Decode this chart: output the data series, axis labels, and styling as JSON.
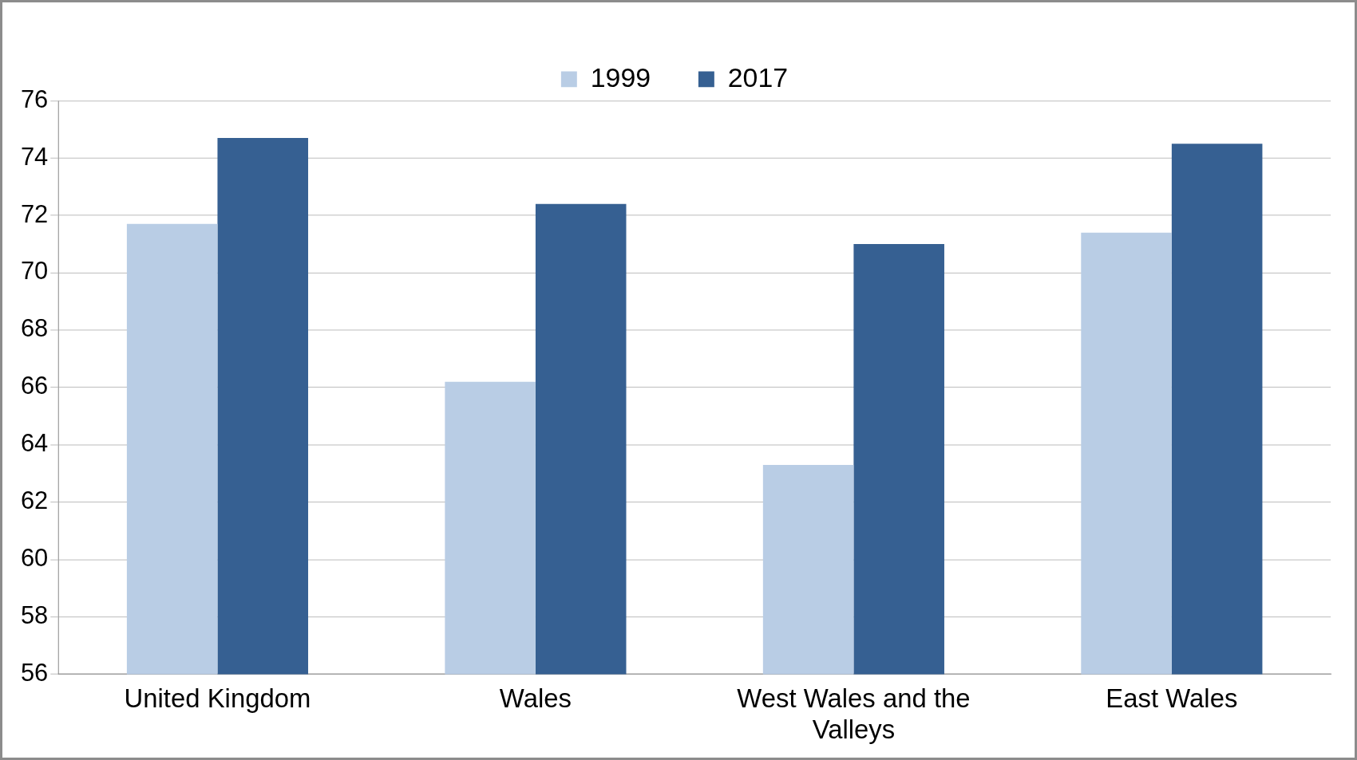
{
  "chart_data": {
    "type": "bar",
    "categories": [
      "United Kingdom",
      "Wales",
      "West Wales and the Valleys",
      "East Wales"
    ],
    "series": [
      {
        "name": "1999",
        "color": "#b9cde5",
        "values": [
          71.7,
          66.2,
          63.3,
          71.4
        ]
      },
      {
        "name": "2017",
        "color": "#366092",
        "values": [
          74.7,
          72.4,
          71.0,
          74.5
        ]
      }
    ],
    "ylim": [
      56,
      76
    ],
    "yticks": [
      56,
      58,
      60,
      62,
      64,
      66,
      68,
      70,
      72,
      74,
      76
    ],
    "grid": "y",
    "legend": "top"
  }
}
